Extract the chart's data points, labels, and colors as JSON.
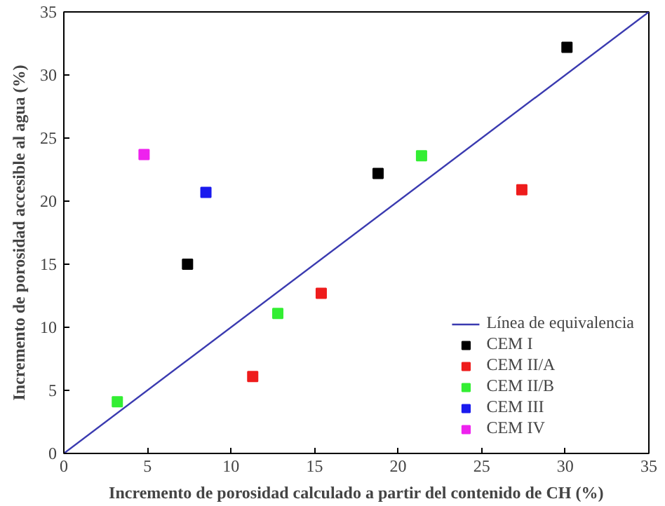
{
  "chart_data": {
    "type": "scatter",
    "xlabel": "Incremento de porosidad calculado a partir del contenido de CH (%)",
    "ylabel": "Incremento de porosidad accesible al agua (%)",
    "xlim": [
      0,
      35
    ],
    "ylim": [
      0,
      35
    ],
    "xticks": [
      0,
      5,
      10,
      15,
      20,
      25,
      30,
      35
    ],
    "yticks": [
      0,
      5,
      10,
      15,
      20,
      25,
      30,
      35
    ],
    "grid": false,
    "legend": "bottom right",
    "marker": "square",
    "series": [
      {
        "name": "Línea de equivalencia",
        "type": "line",
        "color": "#3a3ab0",
        "x": [
          0,
          35
        ],
        "values": [
          0,
          35
        ],
        "marker": "none",
        "line_style": "solid"
      },
      {
        "name": "CEM I",
        "color": "#000000",
        "x": [
          7.4,
          18.8,
          30.1
        ],
        "values": [
          15.0,
          22.2,
          32.2
        ]
      },
      {
        "name": "CEM II/A",
        "color": "#ee1c1c",
        "x": [
          11.3,
          15.4,
          27.4
        ],
        "values": [
          6.1,
          12.7,
          20.9
        ]
      },
      {
        "name": "CEM II/B",
        "color": "#33ee33",
        "x": [
          3.2,
          12.8,
          21.4
        ],
        "values": [
          4.1,
          11.1,
          23.6
        ]
      },
      {
        "name": "CEM III",
        "color": "#1a1aee",
        "x": [
          8.5
        ],
        "values": [
          20.7
        ]
      },
      {
        "name": "CEM IV",
        "color": "#ee22ee",
        "x": [
          4.8
        ],
        "values": [
          23.7
        ]
      }
    ]
  }
}
